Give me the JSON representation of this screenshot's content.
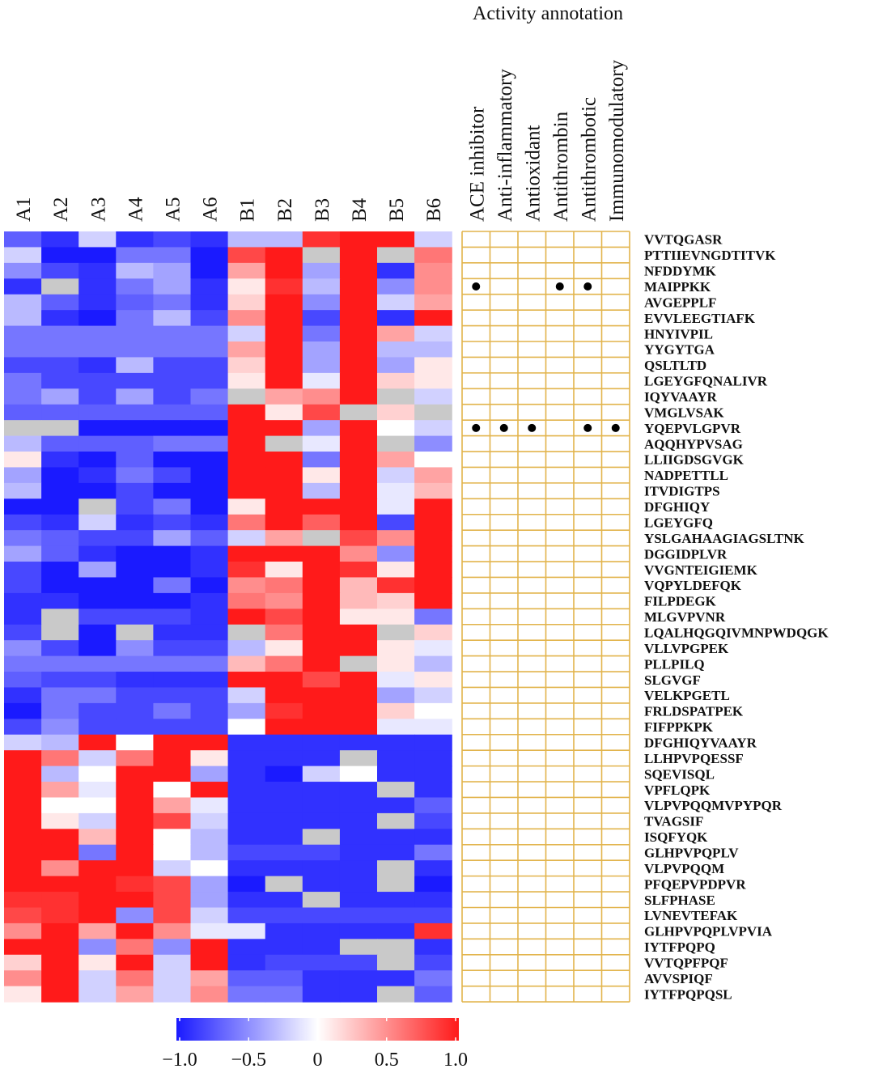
{
  "chart_data": {
    "type": "heatmap",
    "title": "",
    "annotation_title": "Activity annotation",
    "columns": [
      "A1",
      "A2",
      "A3",
      "A4",
      "A5",
      "A6",
      "B1",
      "B2",
      "B3",
      "B4",
      "B5",
      "B6"
    ],
    "rows": [
      "VVTQGASR",
      "PTTIIEVNGDTITVK",
      "NFDDYMK",
      "MAIPPKK",
      "AVGEPPLF",
      "EVVLEEGTIAFK",
      "HNYIVPIL",
      "YYGYTGA",
      "QSLTLTD",
      "LGEYGFQNALIVR",
      "IQYVAAYR",
      "VMGLVSAK",
      "YQEPVLGPVR",
      "AQQHYPVSAG",
      "LLIIGDSGVGK",
      "NADPETTLL",
      "ITVDIGTPS",
      "DFGHIQY",
      "LGEYGFQ",
      "YSLGAHAAGIAGSLTNK",
      "DGGIDPLVR",
      "VVGNTEIGIEMK",
      "VQPYLDEFQK",
      "FILPDEGK",
      "MLGVPVNR",
      "LQALHQGQIVMNPWDQGK",
      "VLLVPGPEK",
      "PLLPILQ",
      "SLGVGF",
      "VELKPGETL",
      "FRLDSPATPEK",
      "FIFPPKPK",
      "DFGHIQYVAAYR",
      "LLHPVPQESSF",
      "SQEVISQL",
      "VPFLQPK",
      "VLPVPQQMVPYPQR",
      "TVAGSIF",
      "ISQFYQK",
      "GLHPVPQPLV",
      "VLPVPQQM",
      "PFQEPVPDPVR",
      "SLFPHASE",
      "LVNEVTEFAK",
      "GLHPVPQPLVPVIA",
      "IYTFPQPQ",
      "VVTQPFPQF",
      "AVVSPIQF",
      "IYTFPQPQSL"
    ],
    "values": [
      [
        -0.7,
        -0.9,
        -0.2,
        -0.9,
        -0.8,
        -0.9,
        -0.3,
        -0.3,
        0.9,
        1.0,
        1.0,
        -0.2
      ],
      [
        -0.2,
        -1.0,
        -1.0,
        -0.6,
        -0.6,
        -1.0,
        0.8,
        1.0,
        null,
        1.0,
        null,
        0.6
      ],
      [
        -0.5,
        -0.8,
        -0.9,
        -0.3,
        -0.4,
        -1.0,
        0.4,
        1.0,
        -0.4,
        1.0,
        -0.9,
        0.5
      ],
      [
        -0.9,
        null,
        -0.9,
        -0.6,
        -0.4,
        -0.9,
        0.1,
        0.9,
        -0.3,
        1.0,
        -0.5,
        0.5
      ],
      [
        -0.3,
        -0.7,
        -0.9,
        -0.7,
        -0.6,
        -0.9,
        0.2,
        1.0,
        -0.5,
        1.0,
        -0.2,
        0.4
      ],
      [
        -0.3,
        -0.9,
        -1.0,
        -0.6,
        -0.3,
        -0.8,
        0.5,
        1.0,
        -0.8,
        1.0,
        -0.9,
        1.0
      ],
      [
        -0.6,
        -0.6,
        -0.6,
        -0.6,
        -0.6,
        -0.6,
        -0.2,
        1.0,
        -0.6,
        1.0,
        0.4,
        -0.2
      ],
      [
        -0.6,
        -0.6,
        -0.6,
        -0.6,
        -0.6,
        -0.6,
        0.4,
        1.0,
        -0.4,
        1.0,
        -0.3,
        -0.3
      ],
      [
        -0.8,
        -0.8,
        -0.9,
        -0.3,
        -0.8,
        -0.8,
        0.2,
        1.0,
        -0.4,
        1.0,
        -0.4,
        0.1
      ],
      [
        -0.6,
        -0.8,
        -0.8,
        -0.8,
        -0.8,
        -0.8,
        0.1,
        1.0,
        -0.1,
        1.0,
        0.2,
        0.1
      ],
      [
        -0.6,
        -0.4,
        -0.8,
        -0.4,
        -0.8,
        -0.6,
        null,
        0.4,
        0.5,
        1.0,
        null,
        -0.2
      ],
      [
        -0.7,
        -0.7,
        -0.7,
        -0.7,
        -0.7,
        -0.7,
        1.0,
        0.1,
        0.8,
        null,
        0.2,
        null
      ],
      [
        null,
        null,
        -1.0,
        -1.0,
        -1.0,
        -1.0,
        1.0,
        1.0,
        -0.4,
        1.0,
        0.0,
        -0.2
      ],
      [
        -0.3,
        -0.7,
        -0.7,
        -0.7,
        -0.6,
        -0.6,
        1.0,
        null,
        -0.1,
        1.0,
        null,
        -0.5
      ],
      [
        0.1,
        -0.9,
        -1.0,
        -0.7,
        -1.0,
        -1.0,
        1.0,
        1.0,
        -0.6,
        1.0,
        0.4,
        0.0
      ],
      [
        -0.4,
        -1.0,
        -0.9,
        -0.6,
        -0.8,
        -1.0,
        1.0,
        1.0,
        0.1,
        1.0,
        -0.2,
        0.4
      ],
      [
        -0.3,
        -1.0,
        -1.0,
        -0.8,
        -1.0,
        -1.0,
        1.0,
        1.0,
        -0.3,
        1.0,
        -0.1,
        0.3
      ],
      [
        -1.0,
        -1.0,
        null,
        -0.8,
        -0.6,
        -1.0,
        0.1,
        1.0,
        1.0,
        1.0,
        -0.1,
        1.0
      ],
      [
        -0.8,
        -0.9,
        -0.2,
        -0.9,
        -0.8,
        -0.9,
        0.6,
        1.0,
        0.7,
        1.0,
        -0.8,
        1.0
      ],
      [
        -0.6,
        -0.7,
        -0.8,
        -0.8,
        -0.4,
        -0.7,
        -0.2,
        0.4,
        null,
        0.8,
        0.5,
        1.0
      ],
      [
        -0.4,
        -0.7,
        -0.9,
        -1.0,
        -1.0,
        -0.9,
        1.0,
        1.0,
        1.0,
        0.5,
        -0.5,
        1.0
      ],
      [
        -0.8,
        -1.0,
        -0.4,
        -1.0,
        -1.0,
        -0.9,
        0.9,
        0.1,
        1.0,
        0.9,
        0.1,
        1.0
      ],
      [
        -0.8,
        -1.0,
        -1.0,
        -1.0,
        -0.6,
        -1.0,
        0.5,
        0.6,
        1.0,
        0.3,
        0.9,
        1.0
      ],
      [
        -0.9,
        -0.9,
        -1.0,
        -1.0,
        -1.0,
        -0.9,
        0.6,
        0.5,
        1.0,
        0.3,
        0.2,
        1.0
      ],
      [
        -0.9,
        null,
        -0.8,
        -0.8,
        -0.8,
        -0.9,
        1.0,
        0.8,
        1.0,
        0.1,
        0.1,
        -0.6
      ],
      [
        -0.8,
        null,
        -1.0,
        null,
        -0.9,
        -0.9,
        null,
        0.6,
        1.0,
        1.0,
        null,
        0.2
      ],
      [
        -0.5,
        -0.8,
        -1.0,
        -0.5,
        -0.8,
        -0.8,
        -0.3,
        0.1,
        1.0,
        1.0,
        0.1,
        -0.1
      ],
      [
        -0.6,
        -0.6,
        -0.6,
        -0.6,
        -0.6,
        -0.6,
        0.3,
        0.6,
        1.0,
        null,
        0.1,
        -0.3
      ],
      [
        -0.7,
        -0.8,
        -0.8,
        -0.9,
        -0.9,
        -0.9,
        1.0,
        1.0,
        0.8,
        1.0,
        -0.1,
        0.1
      ],
      [
        -0.9,
        -0.6,
        -0.6,
        -0.8,
        -0.8,
        -0.8,
        -0.2,
        1.0,
        1.0,
        1.0,
        -0.4,
        -0.2
      ],
      [
        -1.0,
        -0.6,
        -0.8,
        -0.8,
        -0.6,
        -0.8,
        -0.4,
        0.9,
        1.0,
        1.0,
        0.2,
        0.0
      ],
      [
        -0.8,
        -0.5,
        -0.8,
        -0.8,
        -0.8,
        -0.8,
        0.0,
        1.0,
        1.0,
        1.0,
        -0.1,
        -0.1
      ],
      [
        -0.2,
        -0.3,
        1.0,
        0.0,
        1.0,
        1.0,
        -0.9,
        -0.9,
        -0.9,
        -0.9,
        -0.9,
        -0.9
      ],
      [
        1.0,
        0.6,
        -0.2,
        0.6,
        1.0,
        0.1,
        -0.9,
        -0.9,
        -0.9,
        null,
        -0.9,
        -0.9
      ],
      [
        1.0,
        -0.3,
        0.0,
        1.0,
        1.0,
        -0.4,
        -0.9,
        -1.0,
        -0.2,
        0.0,
        -0.9,
        -0.9
      ],
      [
        1.0,
        0.4,
        -0.1,
        1.0,
        0.0,
        1.0,
        -0.9,
        -0.9,
        -0.9,
        -0.9,
        null,
        -0.9
      ],
      [
        1.0,
        0.0,
        0.0,
        1.0,
        0.4,
        -0.1,
        -0.9,
        -0.9,
        -0.9,
        -0.9,
        -0.9,
        -0.7
      ],
      [
        1.0,
        0.1,
        -0.2,
        1.0,
        0.8,
        -0.2,
        -0.9,
        -0.9,
        -0.9,
        -0.9,
        null,
        -0.8
      ],
      [
        1.0,
        1.0,
        0.3,
        1.0,
        0.0,
        -0.3,
        -0.9,
        -0.9,
        null,
        -0.9,
        -0.9,
        -0.9
      ],
      [
        1.0,
        1.0,
        -0.6,
        1.0,
        0.0,
        -0.3,
        -0.8,
        -0.8,
        -0.8,
        -0.9,
        -0.9,
        -0.6
      ],
      [
        1.0,
        0.5,
        1.0,
        1.0,
        -0.2,
        0.0,
        -0.9,
        -0.9,
        -0.9,
        -0.9,
        null,
        -0.9
      ],
      [
        1.0,
        1.0,
        1.0,
        0.9,
        0.8,
        -0.4,
        -1.0,
        null,
        -0.9,
        -0.9,
        null,
        -1.0
      ],
      [
        0.9,
        0.9,
        1.0,
        1.0,
        0.8,
        -0.4,
        -0.9,
        -0.9,
        null,
        -0.9,
        -0.9,
        -0.9
      ],
      [
        0.8,
        0.9,
        1.0,
        -0.5,
        0.8,
        -0.2,
        -0.8,
        -0.8,
        -0.8,
        -0.8,
        -0.8,
        -0.8
      ],
      [
        0.5,
        1.0,
        0.4,
        1.0,
        0.5,
        -0.1,
        -0.1,
        -0.9,
        -0.9,
        -0.9,
        -0.9,
        0.9
      ],
      [
        1.0,
        1.0,
        -0.5,
        0.6,
        -0.5,
        1.0,
        -0.9,
        -0.9,
        -0.9,
        null,
        null,
        -0.9
      ],
      [
        0.2,
        1.0,
        0.1,
        1.0,
        -0.2,
        1.0,
        -0.9,
        -0.8,
        -0.8,
        -0.8,
        null,
        -0.8
      ],
      [
        0.5,
        1.0,
        -0.2,
        0.6,
        -0.2,
        0.4,
        -0.7,
        -0.7,
        -0.9,
        -0.9,
        -0.9,
        -0.6
      ],
      [
        0.1,
        1.0,
        -0.2,
        0.4,
        -0.2,
        0.5,
        -0.6,
        -0.6,
        -0.9,
        -0.9,
        null,
        -0.7
      ]
    ],
    "missing_color": "#c9c9c9",
    "colorscale": {
      "low": "#1a1aff",
      "mid": "#ffffff",
      "high": "#ff1a1a",
      "min": -1.0,
      "max": 1.0
    },
    "colorbar_ticks": [
      "−1.0",
      "−0.5",
      "0",
      "0.5",
      "1.0"
    ],
    "annotation_columns": [
      "ACE inhibitor",
      "Anti-inflammatory",
      "Antioxidant",
      "Antithrombin",
      "Antithrombotic",
      "Immunomodulatory"
    ],
    "annotation_marks": [
      {
        "row": "MAIPPKK",
        "activities": [
          "ACE inhibitor",
          "Antithrombin",
          "Antithrombotic"
        ]
      },
      {
        "row": "YQEPVLGPVR",
        "activities": [
          "ACE inhibitor",
          "Anti-inflammatory",
          "Antioxidant",
          "Antithrombotic",
          "Immunomodulatory"
        ]
      }
    ],
    "annotation_grid_color": "#e2b44c"
  }
}
